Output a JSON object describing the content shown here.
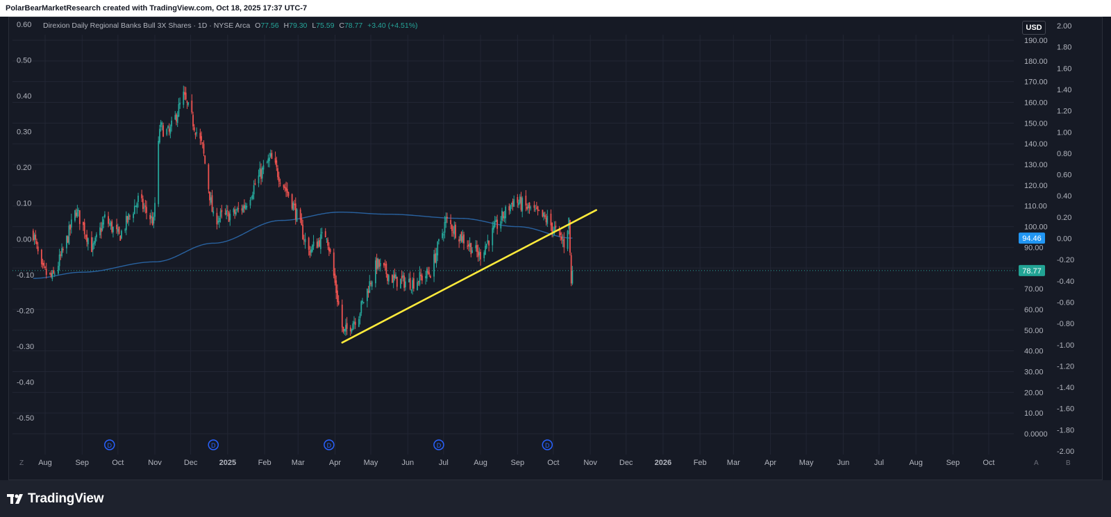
{
  "credit": "PolarBearMarketResearch created with TradingView.com, Oct 18, 2025 17:37 UTC-7",
  "brand": "TradingView",
  "currency_button": "USD",
  "legend": {
    "symbol": "Direxion Daily Regional Banks Bull 3X Shares · 1D · NYSE Arca",
    "open_label": "O",
    "open": "77.56",
    "high_label": "H",
    "high": "79.30",
    "low_label": "L",
    "low": "75.59",
    "close_label": "C",
    "close": "78.77",
    "change": "+3.40 (+4.51%)"
  },
  "colors": {
    "up": "#26a69a",
    "down": "#ef5350",
    "ma": "#2962a0",
    "trendline": "#ffeb3b",
    "ma_label_bg": "#2196f3",
    "price_label_bg": "#22a495"
  },
  "chart_data": {
    "type": "candlestick",
    "symbol": "DPST",
    "interval": "1D",
    "price_axis": {
      "ticks": [
        "0.0000",
        "10.00",
        "20.00",
        "30.00",
        "40.00",
        "50.00",
        "60.00",
        "70.00",
        "80.00",
        "90.00",
        "100.00",
        "110.00",
        "120.00",
        "130.00",
        "140.00",
        "150.00",
        "160.00",
        "170.00",
        "180.00",
        "190.00"
      ],
      "range": [
        0,
        190
      ]
    },
    "left_axis": {
      "ticks": [
        "0.60",
        "0.50",
        "0.40",
        "0.30",
        "0.20",
        "0.10",
        "0.00",
        "-0.10",
        "-0.20",
        "-0.30",
        "-0.40",
        "-0.50"
      ],
      "range": [
        -0.55,
        0.62
      ]
    },
    "right_axis": {
      "ticks": [
        "2.00",
        "1.80",
        "1.60",
        "1.40",
        "1.20",
        "1.00",
        "0.80",
        "0.60",
        "0.40",
        "0.20",
        "0.00",
        "-0.20",
        "-0.40",
        "-0.60",
        "-0.80",
        "-1.00",
        "-1.20",
        "-1.40",
        "-1.60",
        "-1.80",
        "-2.00"
      ],
      "range": [
        -2.0,
        2.0
      ]
    },
    "time_axis": [
      "Aug",
      "Sep",
      "Oct",
      "Nov",
      "Dec",
      "2025",
      "Feb",
      "Mar",
      "Apr",
      "May",
      "Jun",
      "Jul",
      "Aug",
      "Sep",
      "Oct",
      "Nov",
      "Dec",
      "2026",
      "Feb",
      "Mar",
      "Apr",
      "May",
      "Jun",
      "Jul",
      "Aug",
      "Sep",
      "Oct"
    ],
    "price_path": [
      {
        "date": "2024-07-22",
        "price": 97
      },
      {
        "date": "2024-07-29",
        "price": 79
      },
      {
        "date": "2024-08-07",
        "price": 75
      },
      {
        "date": "2024-08-16",
        "price": 88
      },
      {
        "date": "2024-08-27",
        "price": 108
      },
      {
        "date": "2024-09-10",
        "price": 89
      },
      {
        "date": "2024-09-20",
        "price": 104
      },
      {
        "date": "2024-10-02",
        "price": 95
      },
      {
        "date": "2024-10-18",
        "price": 113
      },
      {
        "date": "2024-10-31",
        "price": 102
      },
      {
        "date": "2024-11-05",
        "price": 148
      },
      {
        "date": "2024-11-13",
        "price": 145
      },
      {
        "date": "2024-11-25",
        "price": 163
      },
      {
        "date": "2024-12-11",
        "price": 138
      },
      {
        "date": "2024-12-20",
        "price": 104
      },
      {
        "date": "2025-01-06",
        "price": 106
      },
      {
        "date": "2025-01-15",
        "price": 110
      },
      {
        "date": "2025-01-28",
        "price": 125
      },
      {
        "date": "2025-02-06",
        "price": 133
      },
      {
        "date": "2025-02-24",
        "price": 112
      },
      {
        "date": "2025-03-10",
        "price": 88
      },
      {
        "date": "2025-03-25",
        "price": 97
      },
      {
        "date": "2025-04-08",
        "price": 48
      },
      {
        "date": "2025-04-21",
        "price": 58
      },
      {
        "date": "2025-05-06",
        "price": 82
      },
      {
        "date": "2025-05-21",
        "price": 74
      },
      {
        "date": "2025-06-05",
        "price": 73
      },
      {
        "date": "2025-06-20",
        "price": 78
      },
      {
        "date": "2025-07-03",
        "price": 103
      },
      {
        "date": "2025-07-16",
        "price": 95
      },
      {
        "date": "2025-07-31",
        "price": 86
      },
      {
        "date": "2025-08-14",
        "price": 100
      },
      {
        "date": "2025-08-29",
        "price": 113
      },
      {
        "date": "2025-09-12",
        "price": 108
      },
      {
        "date": "2025-09-26",
        "price": 103
      },
      {
        "date": "2025-10-10",
        "price": 92
      },
      {
        "date": "2025-10-14",
        "price": 103
      },
      {
        "date": "2025-10-16",
        "price": 72
      },
      {
        "date": "2025-10-17",
        "price": 78.77
      }
    ],
    "moving_average": {
      "last": "94.46",
      "path": [
        {
          "date": "2024-07-22",
          "price": 75
        },
        {
          "date": "2024-09-01",
          "price": 78
        },
        {
          "date": "2024-11-01",
          "price": 83
        },
        {
          "date": "2024-12-20",
          "price": 92
        },
        {
          "date": "2025-02-15",
          "price": 103
        },
        {
          "date": "2025-04-05",
          "price": 107
        },
        {
          "date": "2025-05-15",
          "price": 106
        },
        {
          "date": "2025-07-15",
          "price": 104
        },
        {
          "date": "2025-09-01",
          "price": 100
        },
        {
          "date": "2025-10-17",
          "price": 94.46
        }
      ]
    },
    "trendline": [
      {
        "date": "2025-04-07",
        "price": 44
      },
      {
        "date": "2025-11-06",
        "price": 108
      }
    ],
    "last_price": "78.77",
    "dividend_markers": [
      "2024-09-24",
      "2024-12-20",
      "2025-03-27",
      "2025-06-27",
      "2025-09-26"
    ],
    "dividend_label": "D"
  }
}
